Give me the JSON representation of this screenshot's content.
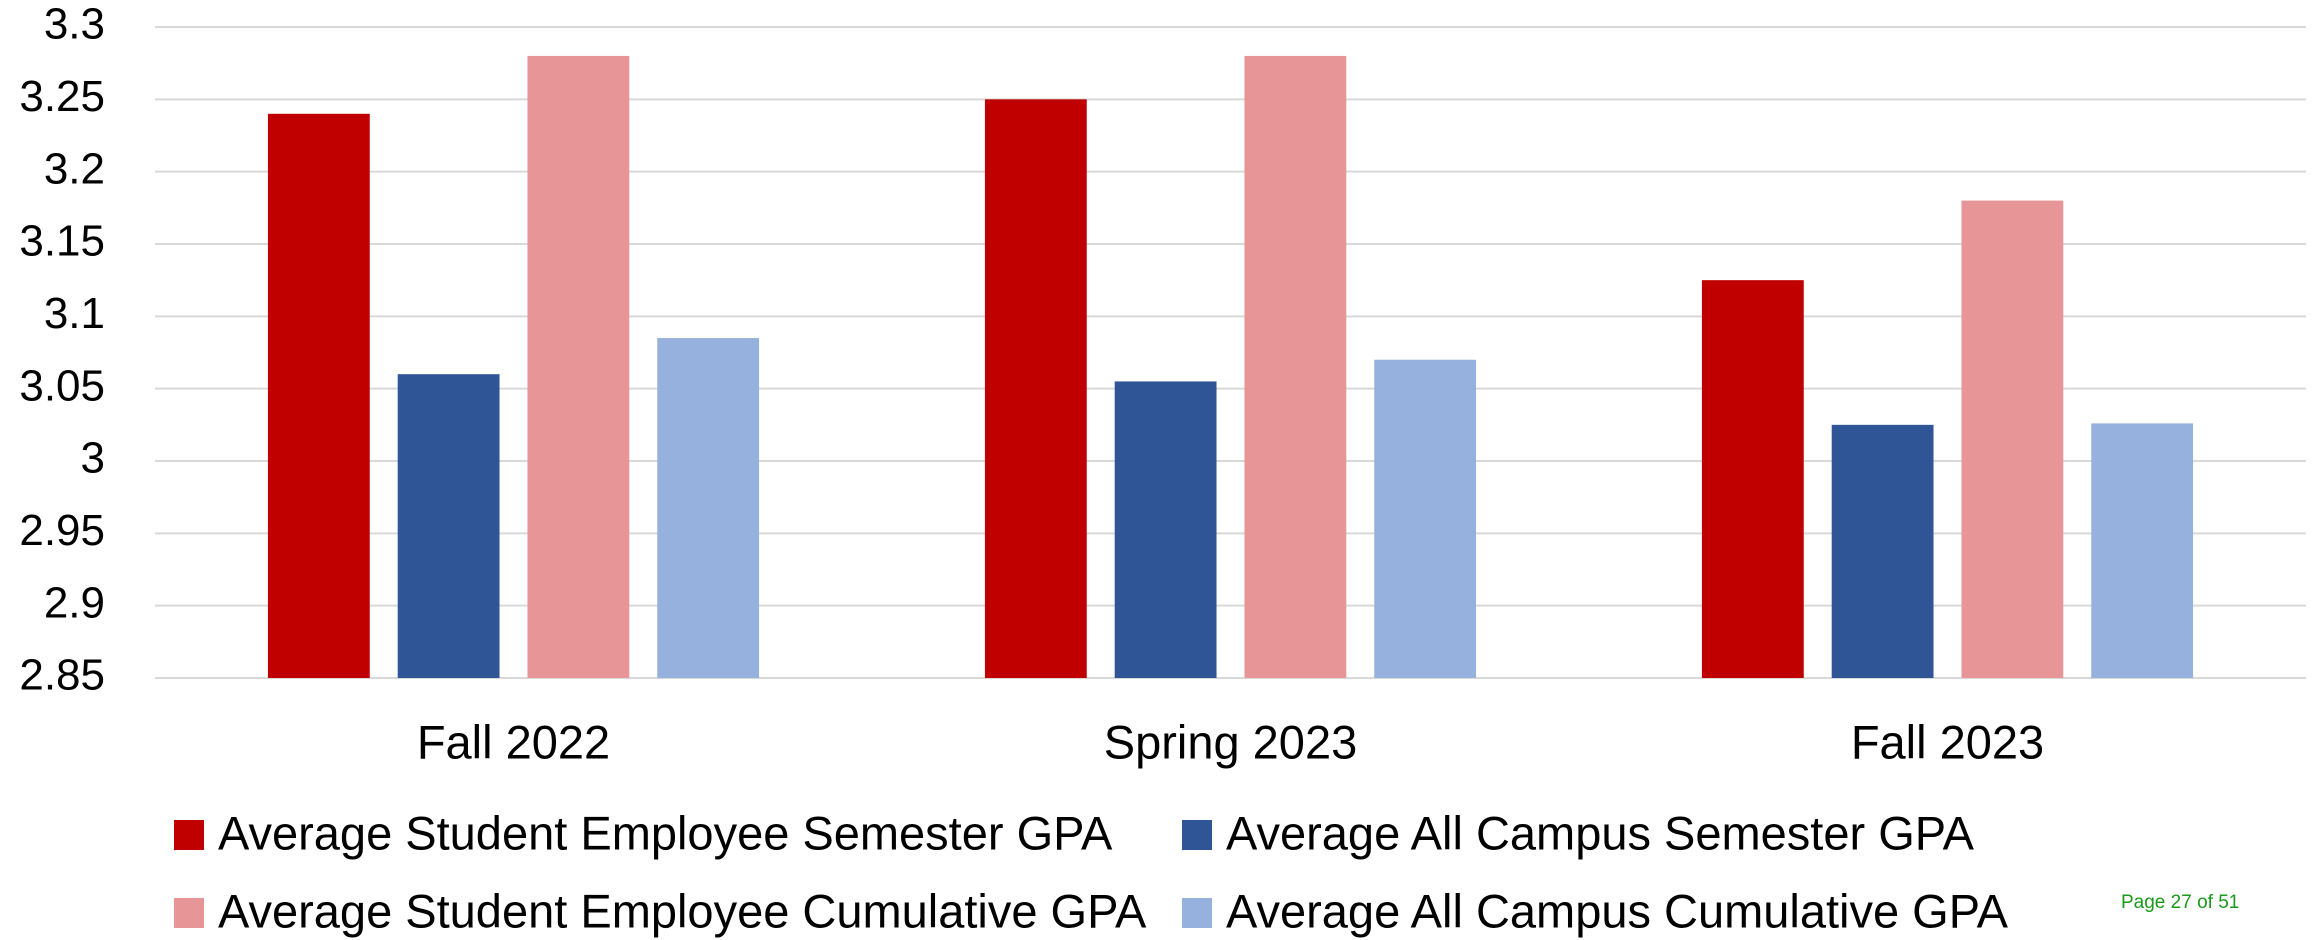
{
  "chart_data": {
    "type": "bar",
    "categories": [
      "Fall 2022",
      "Spring 2023",
      "Fall 2023"
    ],
    "series": [
      {
        "name": "Average Student Employee Semester GPA",
        "color": "#c00000",
        "values": [
          3.24,
          3.25,
          3.125
        ]
      },
      {
        "name": "Average All Campus Semester GPA",
        "color": "#2f5597",
        "values": [
          3.06,
          3.055,
          3.025
        ]
      },
      {
        "name": "Average Student Employee Cumulative GPA",
        "color": "#e79596",
        "values": [
          3.28,
          3.28,
          3.18
        ]
      },
      {
        "name": "Average All Campus Cumulative GPA",
        "color": "#97b1de",
        "values": [
          3.085,
          3.07,
          3.026
        ]
      }
    ],
    "ylim": [
      2.85,
      3.3
    ],
    "yticks": [
      2.85,
      2.9,
      2.95,
      3,
      3.05,
      3.1,
      3.15,
      3.2,
      3.25,
      3.3
    ],
    "grid": true,
    "legend": "bottom"
  },
  "page_label": "Page 27 of 51"
}
